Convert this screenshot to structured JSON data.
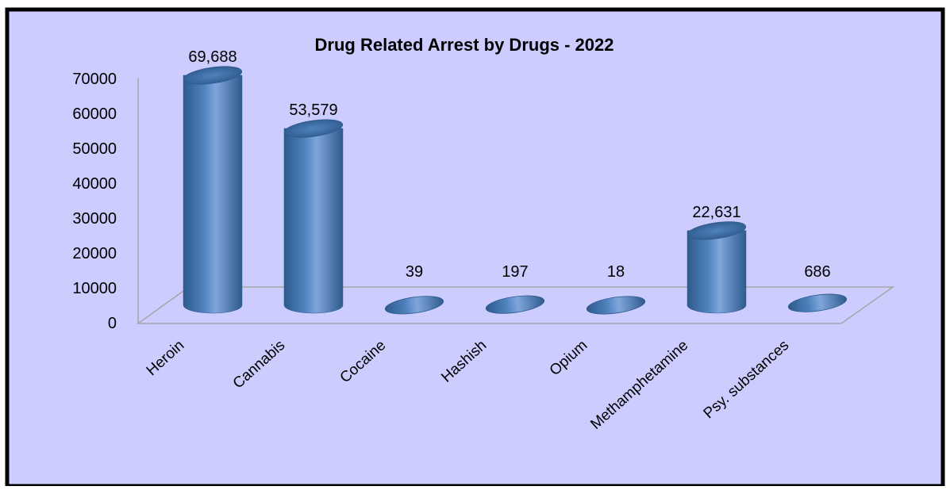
{
  "chart_data": {
    "type": "bar",
    "title": "Drug Related Arrest by Drugs - 2022",
    "categories": [
      "Heroin",
      "Cannabis",
      "Cocaine",
      "Hashish",
      "Opium",
      "Methamphetamine",
      "Psy. substances"
    ],
    "values": [
      69688,
      53579,
      39,
      197,
      18,
      22631,
      686
    ],
    "data_labels": [
      "69,688",
      "53,579",
      "39",
      "197",
      "18",
      "22,631",
      "686"
    ],
    "y_ticks": [
      "0",
      "10000",
      "20000",
      "30000",
      "40000",
      "50000",
      "60000",
      "70000"
    ],
    "ylim": [
      0,
      70000
    ],
    "xlabel": "",
    "ylabel": "",
    "grid": false,
    "legend": "none"
  },
  "colors": {
    "background": "#CCCCFF",
    "bar": "#4F81BD",
    "bar_light": "#7FA6DC",
    "bar_dark": "#2E5A8C",
    "border": "#000000",
    "axis": "#A6A6A6"
  }
}
